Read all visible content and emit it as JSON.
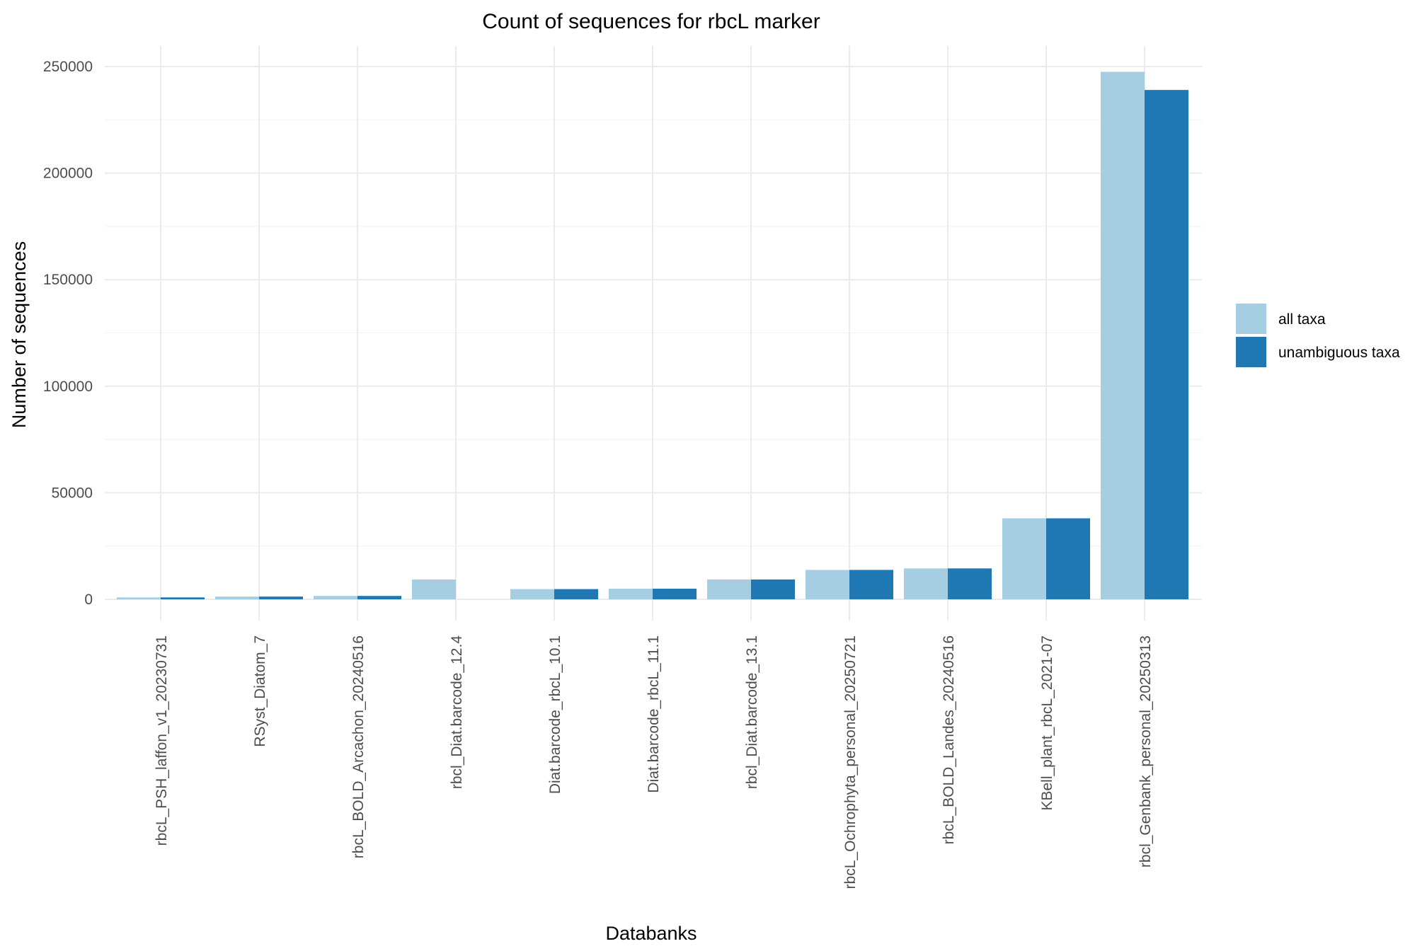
{
  "chart_data": {
    "type": "bar",
    "title": "Count of sequences for rbcL marker",
    "xlabel": "Databanks",
    "ylabel": "Number of sequences",
    "ylim": [
      0,
      262000
    ],
    "yticks": [
      0,
      50000,
      100000,
      150000,
      200000,
      250000
    ],
    "ytick_labels": [
      "0",
      "50000",
      "100000",
      "150000",
      "200000",
      "250000"
    ],
    "grid": true,
    "legend_position": "right",
    "categories": [
      "rbcL_PSH_laffon_v1_20230731",
      "RSyst_Diatom_7",
      "rbcL_BOLD_Arcachon_20240516",
      "rbcl_Diat.barcode_12.4",
      "Diat.barcode_rbcL_10.1",
      "Diat.barcode_rbcL_11.1",
      "rbcl_Diat.barcode_13.1",
      "rbcL_Ochrophyta_personal_20250721",
      "rbcL_BOLD_Landes_20240516",
      "KBell_plant_rbcL_2021-07",
      "rbcl_Genbank_personal_20250313"
    ],
    "series": [
      {
        "name": "all taxa",
        "color": "#a6cee3",
        "values": [
          900,
          1300,
          1600,
          9300,
          4800,
          5000,
          9300,
          13800,
          14500,
          38000,
          247500
        ]
      },
      {
        "name": "unambiguous taxa",
        "color": "#1f78b4",
        "values": [
          900,
          1300,
          1600,
          0,
          4800,
          5000,
          9300,
          13800,
          14500,
          38000,
          239000
        ]
      }
    ]
  }
}
